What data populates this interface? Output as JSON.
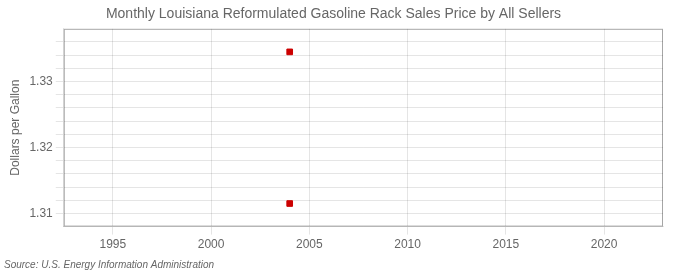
{
  "chart_data": {
    "type": "scatter",
    "title": "Monthly Louisiana Reformulated Gasoline Rack Sales Price by All Sellers",
    "ylabel": "Dollars per Gallon",
    "annotation": "Source: U.S. Energy Information Administration",
    "x": [
      2004.0,
      2004.0
    ],
    "values": [
      1.3345,
      1.3115
    ],
    "color": "#cc0000",
    "marker": "square",
    "xlim": [
      1992.5,
      2023
    ],
    "ylim": [
      1.308,
      1.338
    ],
    "xticks": [
      1995,
      2000,
      2005,
      2010,
      2015,
      2020
    ],
    "yticks": [
      1.31,
      {
        "value": 1.312,
        "label": ""
      },
      {
        "value": 1.314,
        "label": ""
      },
      {
        "value": 1.316,
        "label": ""
      },
      {
        "value": 1.318,
        "label": ""
      },
      1.32,
      {
        "value": 1.322,
        "label": ""
      },
      {
        "value": 1.324,
        "label": ""
      },
      {
        "value": 1.326,
        "label": ""
      },
      {
        "value": 1.328,
        "label": ""
      },
      1.33,
      {
        "value": 1.332,
        "label": ""
      },
      {
        "value": 1.334,
        "label": ""
      },
      {
        "value": 1.336,
        "label": ""
      }
    ],
    "grid": true
  }
}
